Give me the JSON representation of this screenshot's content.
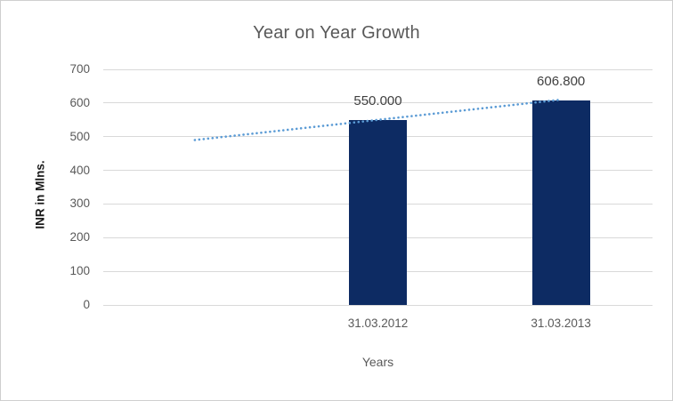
{
  "chart_data": {
    "type": "bar",
    "title": "Year on Year Growth",
    "xlabel": "Years",
    "ylabel": "INR in Mlns.",
    "categories": [
      "31.03.2012",
      "31.03.2013"
    ],
    "values": [
      550.0,
      606.8
    ],
    "data_labels": [
      "550.000",
      "606.800"
    ],
    "ylim": [
      0,
      700
    ],
    "ytick_step": 100,
    "yticks": [
      0,
      100,
      200,
      300,
      400,
      500,
      600,
      700
    ],
    "grid": true,
    "legend": "none",
    "bar_color": "#0d2b63",
    "trendline": {
      "style": "dotted",
      "color": "#5b9bd5",
      "start_value": 490,
      "end_value": 610,
      "description": "dotted linear trendline rising left-to-right across the plot"
    },
    "layout_slots": {
      "total": 3,
      "bar_slots": [
        1,
        2
      ],
      "trend_span_slots": [
        0,
        2
      ]
    },
    "colors": {
      "title_text": "#595959",
      "axis_text": "#595959",
      "data_label_text": "#404040",
      "gridline": "#d9d9d9",
      "y_title_text": "#1a1a1a",
      "frame_border": "#cfcfcf",
      "background": "#ffffff"
    }
  }
}
